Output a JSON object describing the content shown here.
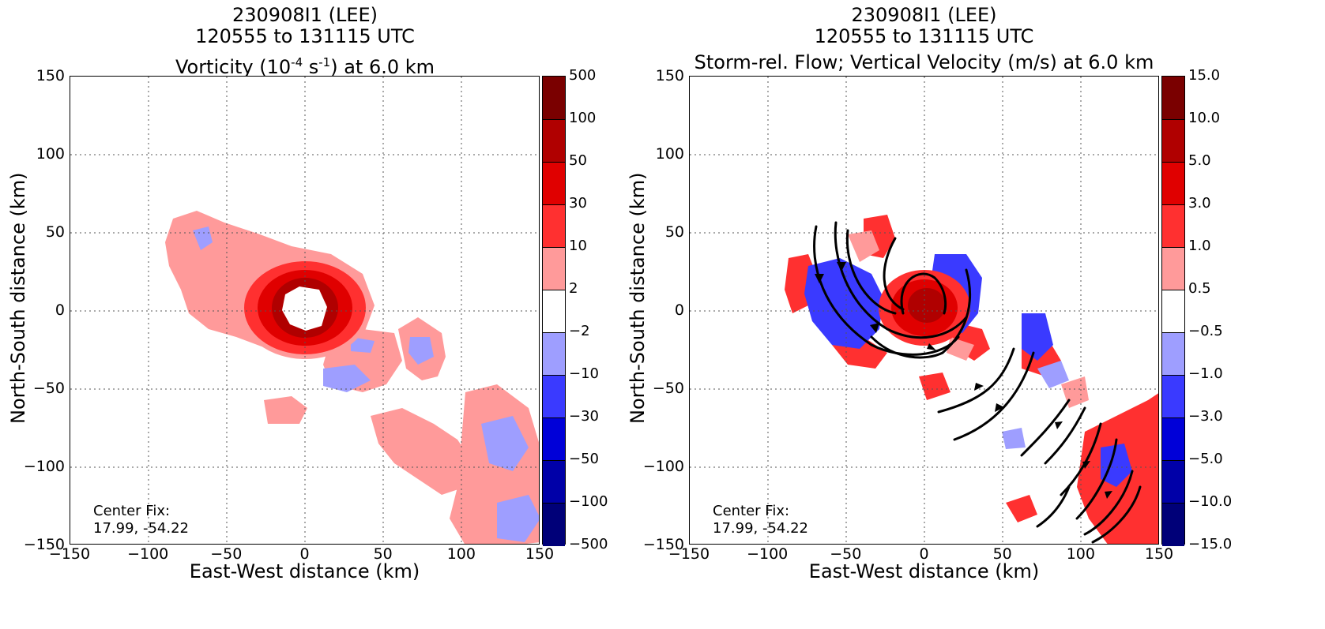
{
  "chart_data": [
    {
      "type": "heatmap",
      "title_line1": "230908I1 (LEE)",
      "title_line2": "120555 to 131115 UTC",
      "title_line3_pre": "Vorticity (10",
      "title_line3_exp1": "-4",
      "title_line3_mid": " s",
      "title_line3_exp2": "-1",
      "title_line3_post": ") at 6.0 km",
      "xlabel": "East-West distance (km)",
      "ylabel": "North-South distance (km)",
      "xlim": [
        -150,
        150
      ],
      "ylim": [
        -150,
        150
      ],
      "xticks": [
        "−150",
        "−100",
        "−50",
        "0",
        "50",
        "100",
        "150"
      ],
      "yticks": [
        "150",
        "100",
        "50",
        "0",
        "−50",
        "−100",
        "−150"
      ],
      "grid": true,
      "center_fix_label": "Center Fix:",
      "center_fix_value": "17.99, -54.22",
      "colorbar_labels": [
        "500",
        "100",
        "50",
        "30",
        "10",
        "2",
        "−2",
        "−10",
        "−30",
        "−50",
        "−100",
        "−500"
      ],
      "colorbar_colors": [
        "#7a0000",
        "#b00000",
        "#e00000",
        "#ff3030",
        "#ff9a9a",
        "#ffffff",
        "#9e9eff",
        "#3a3aff",
        "#0000d8",
        "#0000a8",
        "#000078"
      ]
    },
    {
      "type": "heatmap",
      "title_line1": "230908I1 (LEE)",
      "title_line2": "120555 to 131115 UTC",
      "title_line3": "Storm-rel. Flow; Vertical Velocity (m/s) at 6.0 km",
      "xlabel": "East-West distance (km)",
      "ylabel": "North-South distance (km)",
      "xlim": [
        -150,
        150
      ],
      "ylim": [
        -150,
        150
      ],
      "xticks": [
        "−150",
        "−100",
        "−50",
        "0",
        "50",
        "100",
        "150"
      ],
      "yticks": [
        "150",
        "100",
        "50",
        "0",
        "−50",
        "−100",
        "−150"
      ],
      "grid": true,
      "center_fix_label": "Center Fix:",
      "center_fix_value": "17.99, -54.22",
      "colorbar_labels": [
        "15.0",
        "10.0",
        "5.0",
        "3.0",
        "1.0",
        "0.5",
        "−0.5",
        "−1.0",
        "−3.0",
        "−5.0",
        "−10.0",
        "−15.0"
      ],
      "colorbar_colors": [
        "#7a0000",
        "#b00000",
        "#e00000",
        "#ff3030",
        "#ff9a9a",
        "#ffffff",
        "#9e9eff",
        "#3a3aff",
        "#0000d8",
        "#0000a8",
        "#000078"
      ]
    }
  ]
}
